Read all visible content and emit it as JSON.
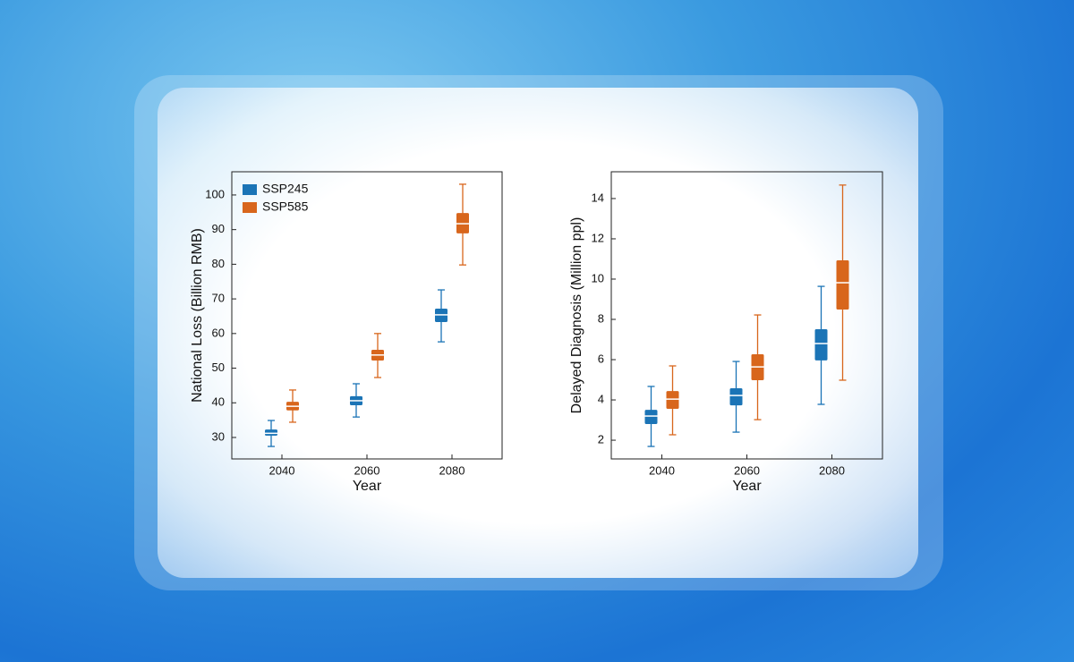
{
  "chart_data": [
    {
      "type": "box",
      "xlabel": "Year",
      "ylabel": "National Loss (Billion RMB)",
      "categories": [
        "2040",
        "2060",
        "2080"
      ],
      "ylim": [
        23.8,
        106.7
      ],
      "yticks": [
        30,
        40,
        50,
        60,
        70,
        80,
        90,
        100
      ],
      "legend": "upper left",
      "series": [
        {
          "name": "SSP245",
          "color": "#1b74b6",
          "min": [
            27.4,
            35.9,
            57.6
          ],
          "q1": [
            30.5,
            39.3,
            63.3
          ],
          "median": [
            31.2,
            40.6,
            65.4
          ],
          "q3": [
            32.3,
            41.9,
            67.2
          ],
          "max": [
            34.9,
            45.5,
            72.6
          ]
        },
        {
          "name": "SSP585",
          "color": "#d8661c",
          "min": [
            34.4,
            47.3,
            79.8
          ],
          "q1": [
            37.8,
            52.2,
            88.9
          ],
          "median": [
            39.0,
            53.8,
            91.7
          ],
          "q3": [
            40.3,
            55.3,
            94.8
          ],
          "max": [
            43.7,
            60.0,
            103.1
          ]
        }
      ]
    },
    {
      "type": "box",
      "xlabel": "Year",
      "ylabel": "Delayed Diagnosis (Million ppl)",
      "categories": [
        "2040",
        "2060",
        "2080"
      ],
      "ylim": [
        1.07,
        15.33
      ],
      "yticks": [
        2,
        4,
        6,
        8,
        10,
        12,
        14
      ],
      "series": [
        {
          "color": "#1b74b6",
          "min": [
            1.69,
            2.4,
            3.78
          ],
          "q1": [
            2.8,
            3.73,
            5.96
          ],
          "median": [
            3.2,
            4.22,
            6.8
          ],
          "q3": [
            3.51,
            4.58,
            7.51
          ],
          "max": [
            4.67,
            5.91,
            9.64
          ]
        },
        {
          "color": "#d8661c",
          "min": [
            2.27,
            3.02,
            4.98
          ],
          "q1": [
            3.56,
            4.98,
            8.49
          ],
          "median": [
            4.04,
            5.64,
            9.82
          ],
          "q3": [
            4.44,
            6.27,
            10.93
          ],
          "max": [
            5.69,
            8.22,
            14.67
          ]
        }
      ]
    }
  ]
}
